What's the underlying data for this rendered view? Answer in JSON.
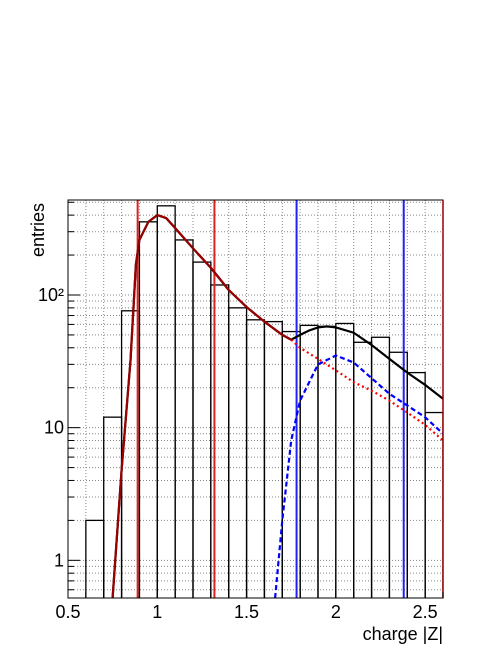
{
  "chart_data": {
    "type": "histogram",
    "x_label": "charge |Z|",
    "y_label": "entries",
    "log_y": true,
    "grid": true,
    "xlim": [
      0.5,
      2.6
    ],
    "ylim": [
      0.52,
      520
    ],
    "xticks": [
      0.5,
      1,
      1.5,
      2,
      2.5
    ],
    "yticks": [
      1,
      10,
      {
        "value": 100,
        "label": "10²"
      }
    ],
    "bins": [
      0.6,
      0.7,
      0.8,
      0.9,
      1.0,
      1.1,
      1.2,
      1.3,
      1.4,
      1.5,
      1.6,
      1.7,
      1.8,
      1.9,
      2.0,
      2.1,
      2.2,
      2.3,
      2.4,
      2.5,
      2.6
    ],
    "values": [
      2,
      12,
      76,
      356,
      470,
      260,
      177,
      119,
      80,
      65,
      63,
      53,
      59,
      58,
      61,
      44,
      48,
      37,
      26,
      13
    ],
    "color": "#000000",
    "curves": [
      {
        "color": "#000000",
        "dash": "none",
        "x": [
          0.75,
          0.8,
          0.85,
          0.88,
          0.9,
          0.95,
          1.0,
          1.05,
          1.1,
          1.2,
          1.3,
          1.4,
          1.5,
          1.6,
          1.7,
          1.75,
          1.8,
          1.85,
          1.9,
          1.95,
          2.0,
          2.1,
          2.2,
          2.3,
          2.4,
          2.5,
          2.6
        ],
        "values": [
          0.52,
          4.8,
          32,
          170,
          260,
          356,
          400,
          380,
          320,
          225,
          160,
          109,
          81,
          63,
          50,
          46,
          50,
          54,
          57,
          58,
          57,
          52,
          42,
          33,
          26,
          21,
          16.5
        ]
      },
      {
        "color": "#990000",
        "dash": "none",
        "x": [
          0.75,
          0.8,
          0.85,
          0.88,
          0.9,
          0.95,
          1.0,
          1.05,
          1.1,
          1.2,
          1.3,
          1.4,
          1.5,
          1.6,
          1.7,
          1.75
        ],
        "values": [
          0.52,
          4.8,
          32,
          170,
          260,
          356,
          400,
          380,
          320,
          225,
          160,
          109,
          81,
          63,
          50,
          46
        ]
      },
      {
        "color": "#ff0000",
        "dash": "2 3",
        "x": [
          1.75,
          1.8,
          1.9,
          2.0,
          2.1,
          2.2,
          2.3,
          2.4,
          2.5,
          2.6
        ],
        "values": [
          46,
          40,
          33,
          27,
          22,
          19,
          16,
          13,
          10.5,
          8
        ]
      },
      {
        "color": "#0000ff",
        "dash": "5 3",
        "x": [
          1.66,
          1.7,
          1.75,
          1.8,
          1.9,
          2.0,
          2.1,
          2.3,
          2.5,
          2.6
        ],
        "values": [
          0.52,
          2,
          8,
          16,
          30,
          35,
          31,
          18,
          12,
          9
        ]
      }
    ],
    "vlines": [
      {
        "x": 0.89,
        "color": "#e02020"
      },
      {
        "x": 1.32,
        "color": "#e02020"
      },
      {
        "x": 1.78,
        "color": "#2020ff"
      },
      {
        "x": 2.38,
        "color": "#2020ff"
      }
    ]
  }
}
